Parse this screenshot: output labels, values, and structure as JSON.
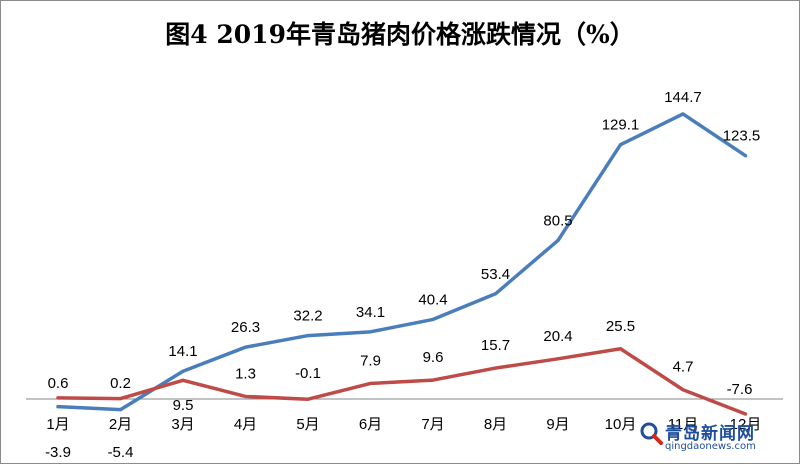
{
  "chart_data": {
    "type": "line",
    "title": "图4 2019年青岛猪肉价格涨跌情况（%）",
    "categories": [
      "1月",
      "2月",
      "3月",
      "4月",
      "5月",
      "6月",
      "7月",
      "8月",
      "9月",
      "10月",
      "11月",
      "12月"
    ],
    "series": [
      {
        "values": [
          -3.9,
          -5.4,
          14.1,
          26.3,
          32.2,
          34.1,
          40.4,
          53.4,
          80.5,
          129.1,
          144.7,
          123.5
        ],
        "color": "#4a7ebb"
      },
      {
        "values": [
          0.6,
          0.2,
          9.5,
          1.3,
          -0.1,
          7.9,
          9.6,
          15.7,
          20.4,
          25.5,
          4.7,
          -7.6
        ],
        "color": "#be4b48"
      }
    ],
    "grid": false,
    "legend": "none"
  },
  "watermark": {
    "text": "青岛新闻网",
    "subtext": "qingdaonews.com"
  }
}
